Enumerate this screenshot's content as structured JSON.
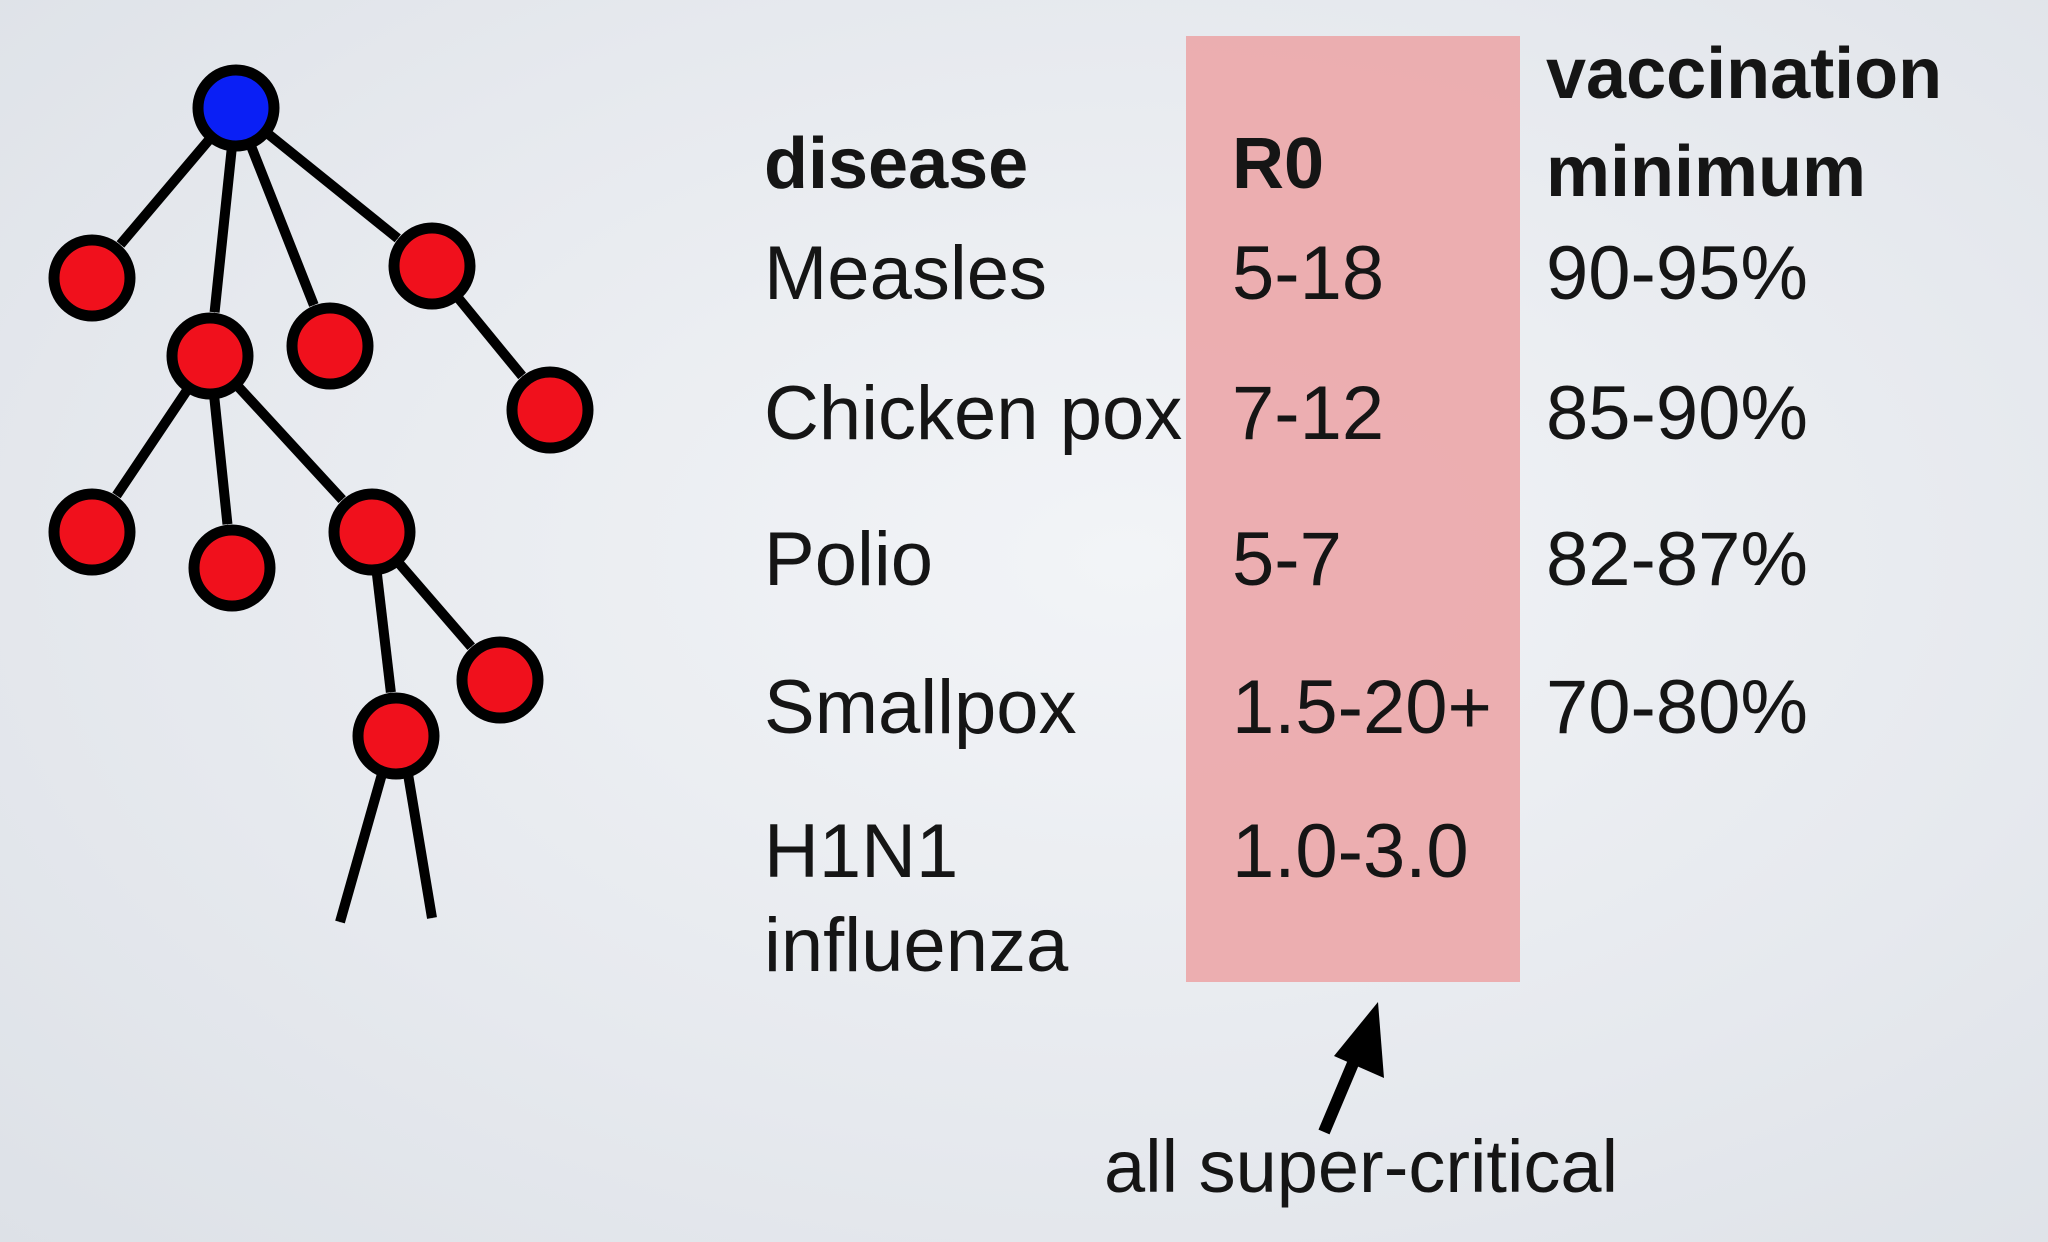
{
  "table": {
    "headers": {
      "disease": "disease",
      "r0": "R0",
      "vaccination_line1": "vaccination",
      "vaccination_line2": "minimum"
    },
    "rows": [
      {
        "disease": "Measles",
        "r0": "5-18",
        "vaccination": "90-95%"
      },
      {
        "disease": "Chicken pox",
        "r0": "7-12",
        "vaccination": "85-90%"
      },
      {
        "disease": "Polio",
        "r0": "5-7",
        "vaccination": "82-87%"
      },
      {
        "disease": "Smallpox",
        "r0": "1.5-20+",
        "vaccination": "70-80%"
      },
      {
        "disease_line1": "H1N1",
        "disease_line2": "influenza",
        "r0": "1.0-3.0",
        "vaccination": ""
      }
    ]
  },
  "annotation": "all super-critical",
  "colors": {
    "root_node": "#0a1ff5",
    "infected_node": "#f0101c",
    "r0_highlight": "#eca8aa",
    "edge": "#000000"
  }
}
